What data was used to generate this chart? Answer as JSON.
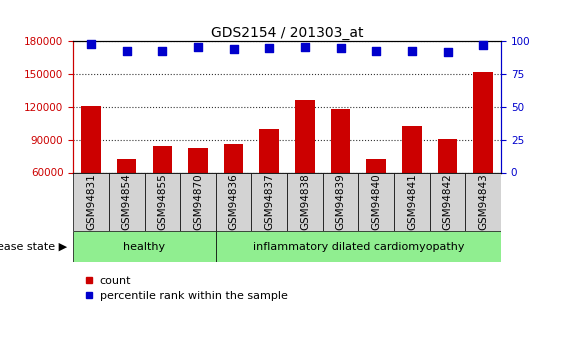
{
  "title": "GDS2154 / 201303_at",
  "categories": [
    "GSM94831",
    "GSM94854",
    "GSM94855",
    "GSM94870",
    "GSM94836",
    "GSM94837",
    "GSM94838",
    "GSM94839",
    "GSM94840",
    "GSM94841",
    "GSM94842",
    "GSM94843"
  ],
  "bar_values": [
    121000,
    72000,
    84000,
    82000,
    86000,
    100000,
    126000,
    118000,
    72000,
    103000,
    91000,
    152000
  ],
  "percentile_values": [
    98,
    93,
    93,
    96,
    94,
    95,
    96,
    95,
    93,
    93,
    92,
    97
  ],
  "bar_color": "#cc0000",
  "dot_color": "#0000cc",
  "ylim_left": [
    60000,
    180000
  ],
  "ylim_right": [
    0,
    100
  ],
  "yticks_left": [
    60000,
    90000,
    120000,
    150000,
    180000
  ],
  "yticks_right": [
    0,
    25,
    50,
    75,
    100
  ],
  "healthy_count": 4,
  "disease_label": "healthy",
  "disease2_label": "inflammatory dilated cardiomyopathy",
  "left_tick_color": "#cc0000",
  "right_tick_color": "#0000cc",
  "title_fontsize": 10,
  "tick_fontsize": 7.5,
  "legend_count_label": "count",
  "legend_percentile_label": "percentile rank within the sample",
  "disease_state_label": "disease state",
  "cell_bg": "#d3d3d3",
  "healthy_bg": "#90ee90",
  "grid_color": "black",
  "bar_width": 0.55,
  "dot_size": 35,
  "dot_marker": "s"
}
